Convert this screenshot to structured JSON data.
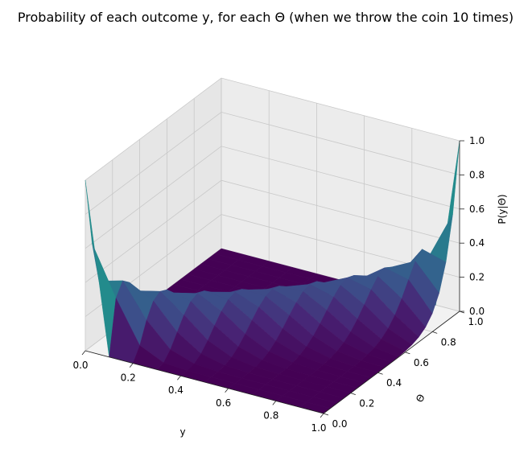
{
  "chart_data": {
    "type": "surface3d",
    "title": "Probability of each outcome y, for each Θ (when we throw the coin 10 times)",
    "xlabel": "y",
    "ylabel": "Θ",
    "zlabel": "P(y|Θ)",
    "n_trials": 10,
    "x_outcomes": [
      0.0,
      0.1,
      0.2,
      0.3,
      0.4,
      0.5,
      0.6,
      0.7,
      0.8,
      0.9,
      1.0
    ],
    "theta_samples": [
      0.0,
      0.05,
      0.1,
      0.15,
      0.2,
      0.25,
      0.3,
      0.35,
      0.4,
      0.45,
      0.5,
      0.55,
      0.6,
      0.65,
      0.7,
      0.75,
      0.8,
      0.85,
      0.9,
      0.95,
      1.0
    ],
    "xlim": [
      0,
      1
    ],
    "ylim": [
      0,
      1
    ],
    "zlim": [
      0,
      1
    ],
    "xticks": [
      "0.0",
      "0.2",
      "0.4",
      "0.6",
      "0.8",
      "1.0"
    ],
    "yticks": [
      "0.0",
      "0.2",
      "0.4",
      "0.6",
      "0.8",
      "1.0"
    ],
    "zticks": [
      "0.0",
      "0.2",
      "0.4",
      "0.6",
      "0.8",
      "1.0"
    ],
    "colormap": "viridis",
    "grid": true
  }
}
